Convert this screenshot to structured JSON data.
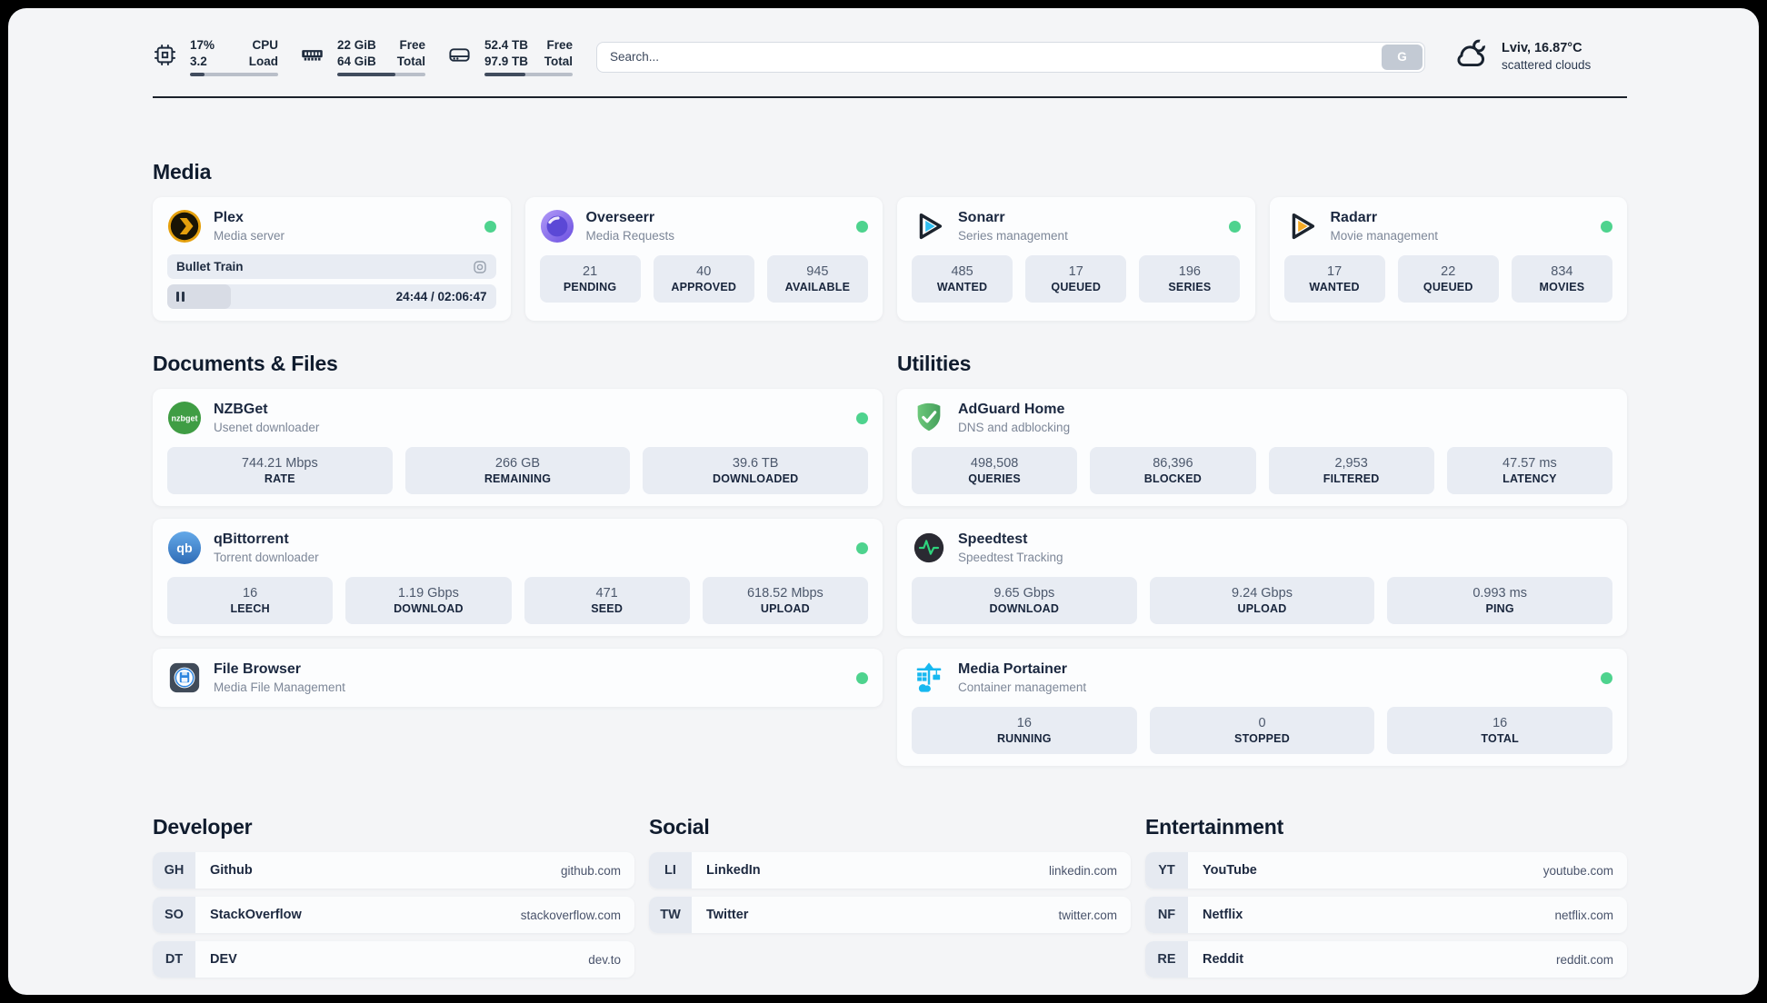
{
  "header": {
    "metrics": [
      {
        "value_top": "17%",
        "value_bottom": "3.2",
        "label_top": "CPU",
        "label_bottom": "Load",
        "progress_percent": 17
      },
      {
        "value_top": "22 GiB",
        "value_bottom": "64 GiB",
        "label_top": "Free",
        "label_bottom": "Total",
        "progress_percent": 66
      },
      {
        "value_top": "52.4 TB",
        "value_bottom": "97.9 TB",
        "label_top": "Free",
        "label_bottom": "Total",
        "progress_percent": 46
      }
    ],
    "search": {
      "placeholder": "Search...",
      "button_label": "G"
    },
    "weather": {
      "location": "Lviv, 16.87°C",
      "condition": "scattered clouds"
    }
  },
  "colors": {
    "status_online": "#4ed38e",
    "panel_bg": "#f4f5f7",
    "stat_pill_bg": "#e8ecf3"
  },
  "sections": {
    "media": {
      "title": "Media",
      "plex": {
        "title": "Plex",
        "subtitle": "Media server",
        "now_playing": "Bullet Train",
        "time_display": "24:44 / 02:06:47",
        "progress_percent": 19.5
      },
      "overseerr": {
        "title": "Overseerr",
        "subtitle": "Media Requests",
        "stats": [
          {
            "value": "21",
            "label": "PENDING"
          },
          {
            "value": "40",
            "label": "APPROVED"
          },
          {
            "value": "945",
            "label": "AVAILABLE"
          }
        ]
      },
      "sonarr": {
        "title": "Sonarr",
        "subtitle": "Series management",
        "stats": [
          {
            "value": "485",
            "label": "WANTED"
          },
          {
            "value": "17",
            "label": "QUEUED"
          },
          {
            "value": "196",
            "label": "SERIES"
          }
        ]
      },
      "radarr": {
        "title": "Radarr",
        "subtitle": "Movie management",
        "stats": [
          {
            "value": "17",
            "label": "WANTED"
          },
          {
            "value": "22",
            "label": "QUEUED"
          },
          {
            "value": "834",
            "label": "MOVIES"
          }
        ]
      }
    },
    "documents": {
      "title": "Documents & Files",
      "nzbget": {
        "title": "NZBGet",
        "subtitle": "Usenet downloader",
        "stats": [
          {
            "value": "744.21 Mbps",
            "label": "RATE"
          },
          {
            "value": "266 GB",
            "label": "REMAINING"
          },
          {
            "value": "39.6 TB",
            "label": "DOWNLOADED"
          }
        ]
      },
      "qbittorrent": {
        "title": "qBittorrent",
        "subtitle": "Torrent downloader",
        "stats": [
          {
            "value": "16",
            "label": "LEECH"
          },
          {
            "value": "1.19 Gbps",
            "label": "DOWNLOAD"
          },
          {
            "value": "471",
            "label": "SEED"
          },
          {
            "value": "618.52 Mbps",
            "label": "UPLOAD"
          }
        ]
      },
      "filebrowser": {
        "title": "File Browser",
        "subtitle": "Media File Management"
      }
    },
    "utilities": {
      "title": "Utilities",
      "adguard": {
        "title": "AdGuard Home",
        "subtitle": "DNS and adblocking",
        "stats": [
          {
            "value": "498,508",
            "label": "QUERIES"
          },
          {
            "value": "86,396",
            "label": "BLOCKED"
          },
          {
            "value": "2,953",
            "label": "FILTERED"
          },
          {
            "value": "47.57 ms",
            "label": "LATENCY"
          }
        ]
      },
      "speedtest": {
        "title": "Speedtest",
        "subtitle": "Speedtest Tracking",
        "stats": [
          {
            "value": "9.65 Gbps",
            "label": "DOWNLOAD"
          },
          {
            "value": "9.24 Gbps",
            "label": "UPLOAD"
          },
          {
            "value": "0.993 ms",
            "label": "PING"
          }
        ]
      },
      "portainer": {
        "title": "Media Portainer",
        "subtitle": "Container management",
        "stats": [
          {
            "value": "16",
            "label": "RUNNING"
          },
          {
            "value": "0",
            "label": "STOPPED"
          },
          {
            "value": "16",
            "label": "TOTAL"
          }
        ]
      }
    },
    "bookmarks": {
      "developer": {
        "title": "Developer",
        "items": [
          {
            "abbr": "GH",
            "name": "Github",
            "url": "github.com"
          },
          {
            "abbr": "SO",
            "name": "StackOverflow",
            "url": "stackoverflow.com"
          },
          {
            "abbr": "DT",
            "name": "DEV",
            "url": "dev.to"
          }
        ]
      },
      "social": {
        "title": "Social",
        "items": [
          {
            "abbr": "LI",
            "name": "LinkedIn",
            "url": "linkedin.com"
          },
          {
            "abbr": "TW",
            "name": "Twitter",
            "url": "twitter.com"
          }
        ]
      },
      "entertainment": {
        "title": "Entertainment",
        "items": [
          {
            "abbr": "YT",
            "name": "YouTube",
            "url": "youtube.com"
          },
          {
            "abbr": "NF",
            "name": "Netflix",
            "url": "netflix.com"
          },
          {
            "abbr": "RE",
            "name": "Reddit",
            "url": "reddit.com"
          }
        ]
      }
    }
  }
}
